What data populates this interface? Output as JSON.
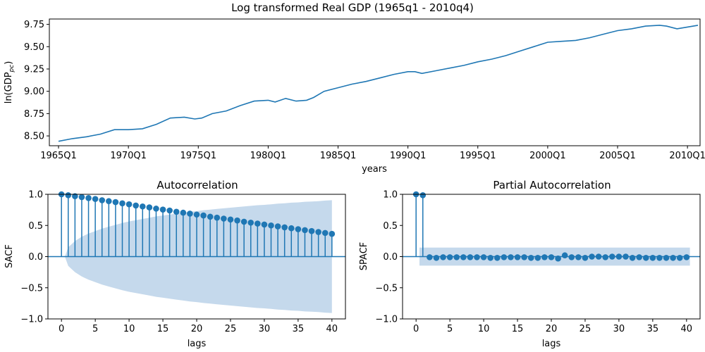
{
  "figure": {
    "title": "Log transformed Real GDP (1965q1 - 2010q4)"
  },
  "colors": {
    "line": "#1f77b4",
    "band": "#c5d9ec",
    "stem": "#1f77b4",
    "zero": "#1f77b4"
  },
  "chart_data": [
    {
      "type": "line",
      "xlabel": "years",
      "ylabel_base": "ln(GDP",
      "ylabel_sub": "pc",
      "ylabel_tail": ")",
      "x_start": "1965Q1",
      "x_end": "2010Q4",
      "xtick_labels": [
        "1965Q1",
        "1970Q1",
        "1975Q1",
        "1980Q1",
        "1985Q1",
        "1990Q1",
        "1995Q1",
        "2000Q1",
        "2005Q1",
        "2010Q1"
      ],
      "yticks": [
        8.5,
        8.75,
        9.0,
        9.25,
        9.5,
        9.75
      ],
      "ytick_labels": [
        "8.50",
        "8.75",
        "9.00",
        "9.25",
        "9.50",
        "9.75"
      ],
      "ylim": [
        8.39,
        9.81
      ],
      "series": [
        {
          "x": [
            "1965Q1",
            "1966Q1",
            "1967Q1",
            "1968Q1",
            "1969Q1",
            "1970Q1",
            "1971Q1",
            "1972Q1",
            "1973Q1",
            "1974Q1",
            "1974Q4",
            "1975Q2",
            "1976Q1",
            "1977Q1",
            "1978Q1",
            "1979Q1",
            "1980Q1",
            "1980Q3",
            "1981Q2",
            "1982Q1",
            "1982Q4",
            "1983Q2",
            "1984Q1",
            "1985Q1",
            "1986Q1",
            "1987Q1",
            "1988Q1",
            "1989Q1",
            "1990Q1",
            "1990Q3",
            "1991Q1",
            "1992Q1",
            "1993Q1",
            "1994Q1",
            "1995Q1",
            "1996Q1",
            "1997Q1",
            "1998Q1",
            "1999Q1",
            "2000Q1",
            "2001Q1",
            "2002Q1",
            "2003Q1",
            "2004Q1",
            "2005Q1",
            "2006Q1",
            "2007Q1",
            "2008Q1",
            "2008Q3",
            "2009Q2",
            "2010Q1",
            "2010Q4"
          ],
          "y": [
            8.44,
            8.47,
            8.49,
            8.52,
            8.57,
            8.57,
            8.58,
            8.63,
            8.7,
            8.71,
            8.69,
            8.7,
            8.75,
            8.78,
            8.84,
            8.89,
            8.9,
            8.88,
            8.92,
            8.89,
            8.9,
            8.93,
            9.0,
            9.04,
            9.08,
            9.11,
            9.15,
            9.19,
            9.22,
            9.22,
            9.2,
            9.23,
            9.26,
            9.29,
            9.33,
            9.36,
            9.4,
            9.45,
            9.5,
            9.55,
            9.56,
            9.57,
            9.6,
            9.64,
            9.68,
            9.7,
            9.73,
            9.74,
            9.73,
            9.7,
            9.72,
            9.74
          ]
        }
      ]
    },
    {
      "type": "stem",
      "title": "Autocorrelation",
      "xlabel": "lags",
      "ylabel": "SACF",
      "xticks": [
        0,
        5,
        10,
        15,
        20,
        25,
        30,
        35,
        40
      ],
      "yticks": [
        -1.0,
        -0.5,
        0.0,
        0.5,
        1.0
      ],
      "ytick_labels": [
        "−1.0",
        "−0.5",
        "0.0",
        "0.5",
        "1.0"
      ],
      "xlim": [
        -2,
        42
      ],
      "ylim": [
        -1.0,
        1.0
      ],
      "lags": [
        0,
        1,
        2,
        3,
        4,
        5,
        6,
        7,
        8,
        9,
        10,
        11,
        12,
        13,
        14,
        15,
        16,
        17,
        18,
        19,
        20,
        21,
        22,
        23,
        24,
        25,
        26,
        27,
        28,
        29,
        30,
        31,
        32,
        33,
        34,
        35,
        36,
        37,
        38,
        39,
        40
      ],
      "values": [
        1.0,
        0.985,
        0.97,
        0.955,
        0.94,
        0.925,
        0.905,
        0.89,
        0.875,
        0.855,
        0.84,
        0.82,
        0.805,
        0.79,
        0.77,
        0.755,
        0.74,
        0.72,
        0.705,
        0.69,
        0.675,
        0.66,
        0.64,
        0.625,
        0.61,
        0.595,
        0.58,
        0.56,
        0.545,
        0.53,
        0.515,
        0.5,
        0.485,
        0.47,
        0.455,
        0.44,
        0.425,
        0.41,
        0.395,
        0.38,
        0.365
      ],
      "conf_band": [
        0,
        0.15,
        0.25,
        0.32,
        0.37,
        0.41,
        0.45,
        0.48,
        0.51,
        0.54,
        0.565,
        0.585,
        0.605,
        0.625,
        0.645,
        0.66,
        0.675,
        0.69,
        0.705,
        0.72,
        0.73,
        0.745,
        0.755,
        0.765,
        0.775,
        0.785,
        0.795,
        0.805,
        0.815,
        0.825,
        0.83,
        0.84,
        0.85,
        0.855,
        0.865,
        0.87,
        0.88,
        0.885,
        0.89,
        0.9,
        0.905
      ]
    },
    {
      "type": "stem",
      "title": "Partial Autocorrelation",
      "xlabel": "lags",
      "ylabel": "SPACF",
      "xticks": [
        0,
        5,
        10,
        15,
        20,
        25,
        30,
        35,
        40
      ],
      "yticks": [
        -1.0,
        -0.5,
        0.0,
        0.5,
        1.0
      ],
      "ytick_labels": [
        "−1.0",
        "−0.5",
        "0.0",
        "0.5",
        "1.0"
      ],
      "xlim": [
        -2,
        42
      ],
      "ylim": [
        -1.0,
        1.0
      ],
      "lags": [
        0,
        1,
        2,
        3,
        4,
        5,
        6,
        7,
        8,
        9,
        10,
        11,
        12,
        13,
        14,
        15,
        16,
        17,
        18,
        19,
        20,
        21,
        22,
        23,
        24,
        25,
        26,
        27,
        28,
        29,
        30,
        31,
        32,
        33,
        34,
        35,
        36,
        37,
        38,
        39,
        40
      ],
      "values": [
        1.0,
        0.985,
        -0.01,
        -0.02,
        -0.01,
        -0.01,
        -0.01,
        -0.01,
        -0.01,
        -0.01,
        -0.01,
        -0.02,
        -0.02,
        -0.01,
        -0.01,
        -0.01,
        -0.01,
        -0.02,
        -0.02,
        -0.01,
        -0.01,
        -0.03,
        0.02,
        -0.01,
        -0.01,
        -0.02,
        0.0,
        0.0,
        -0.01,
        0.0,
        0.0,
        0.0,
        -0.02,
        -0.01,
        -0.02,
        -0.02,
        -0.02,
        -0.02,
        -0.02,
        -0.02,
        -0.01
      ],
      "conf_band_half": 0.145
    }
  ]
}
